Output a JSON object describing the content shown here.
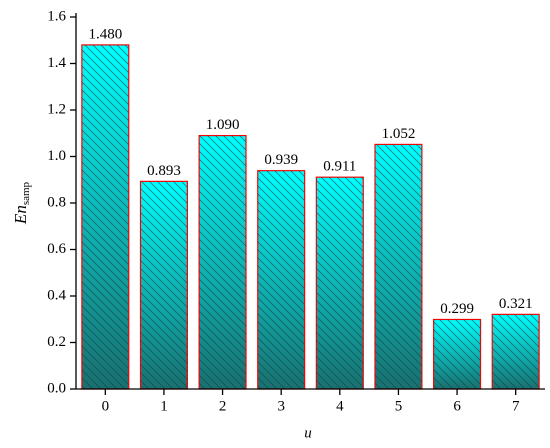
{
  "chart_data": {
    "type": "bar",
    "x_label": "u",
    "y_label": {
      "main": "En",
      "sub": "samp"
    },
    "categories": [
      "0",
      "1",
      "2",
      "3",
      "4",
      "5",
      "6",
      "7"
    ],
    "values": [
      1.48,
      0.893,
      1.09,
      0.939,
      0.911,
      1.052,
      0.299,
      0.321
    ],
    "value_labels": [
      "1.480",
      "0.893",
      "1.090",
      "0.939",
      "0.911",
      "1.052",
      "0.299",
      "0.321"
    ],
    "color": "#00ffff",
    "edgecolor": "#ff0000",
    "ylim": [
      0,
      1.6
    ],
    "yticks": [
      {
        "value": 0,
        "label": "0.0"
      },
      {
        "value": 0.2,
        "label": "0.2"
      },
      {
        "value": 0.4,
        "label": "0.4"
      },
      {
        "value": 0.6,
        "label": "0.6"
      },
      {
        "value": 0.8,
        "label": "0.8"
      },
      {
        "value": 1.0,
        "label": "1.0"
      },
      {
        "value": 1.2,
        "label": "1.2"
      },
      {
        "value": 1.4,
        "label": "1.4"
      },
      {
        "value": 1.6,
        "label": "1.6"
      }
    ]
  }
}
